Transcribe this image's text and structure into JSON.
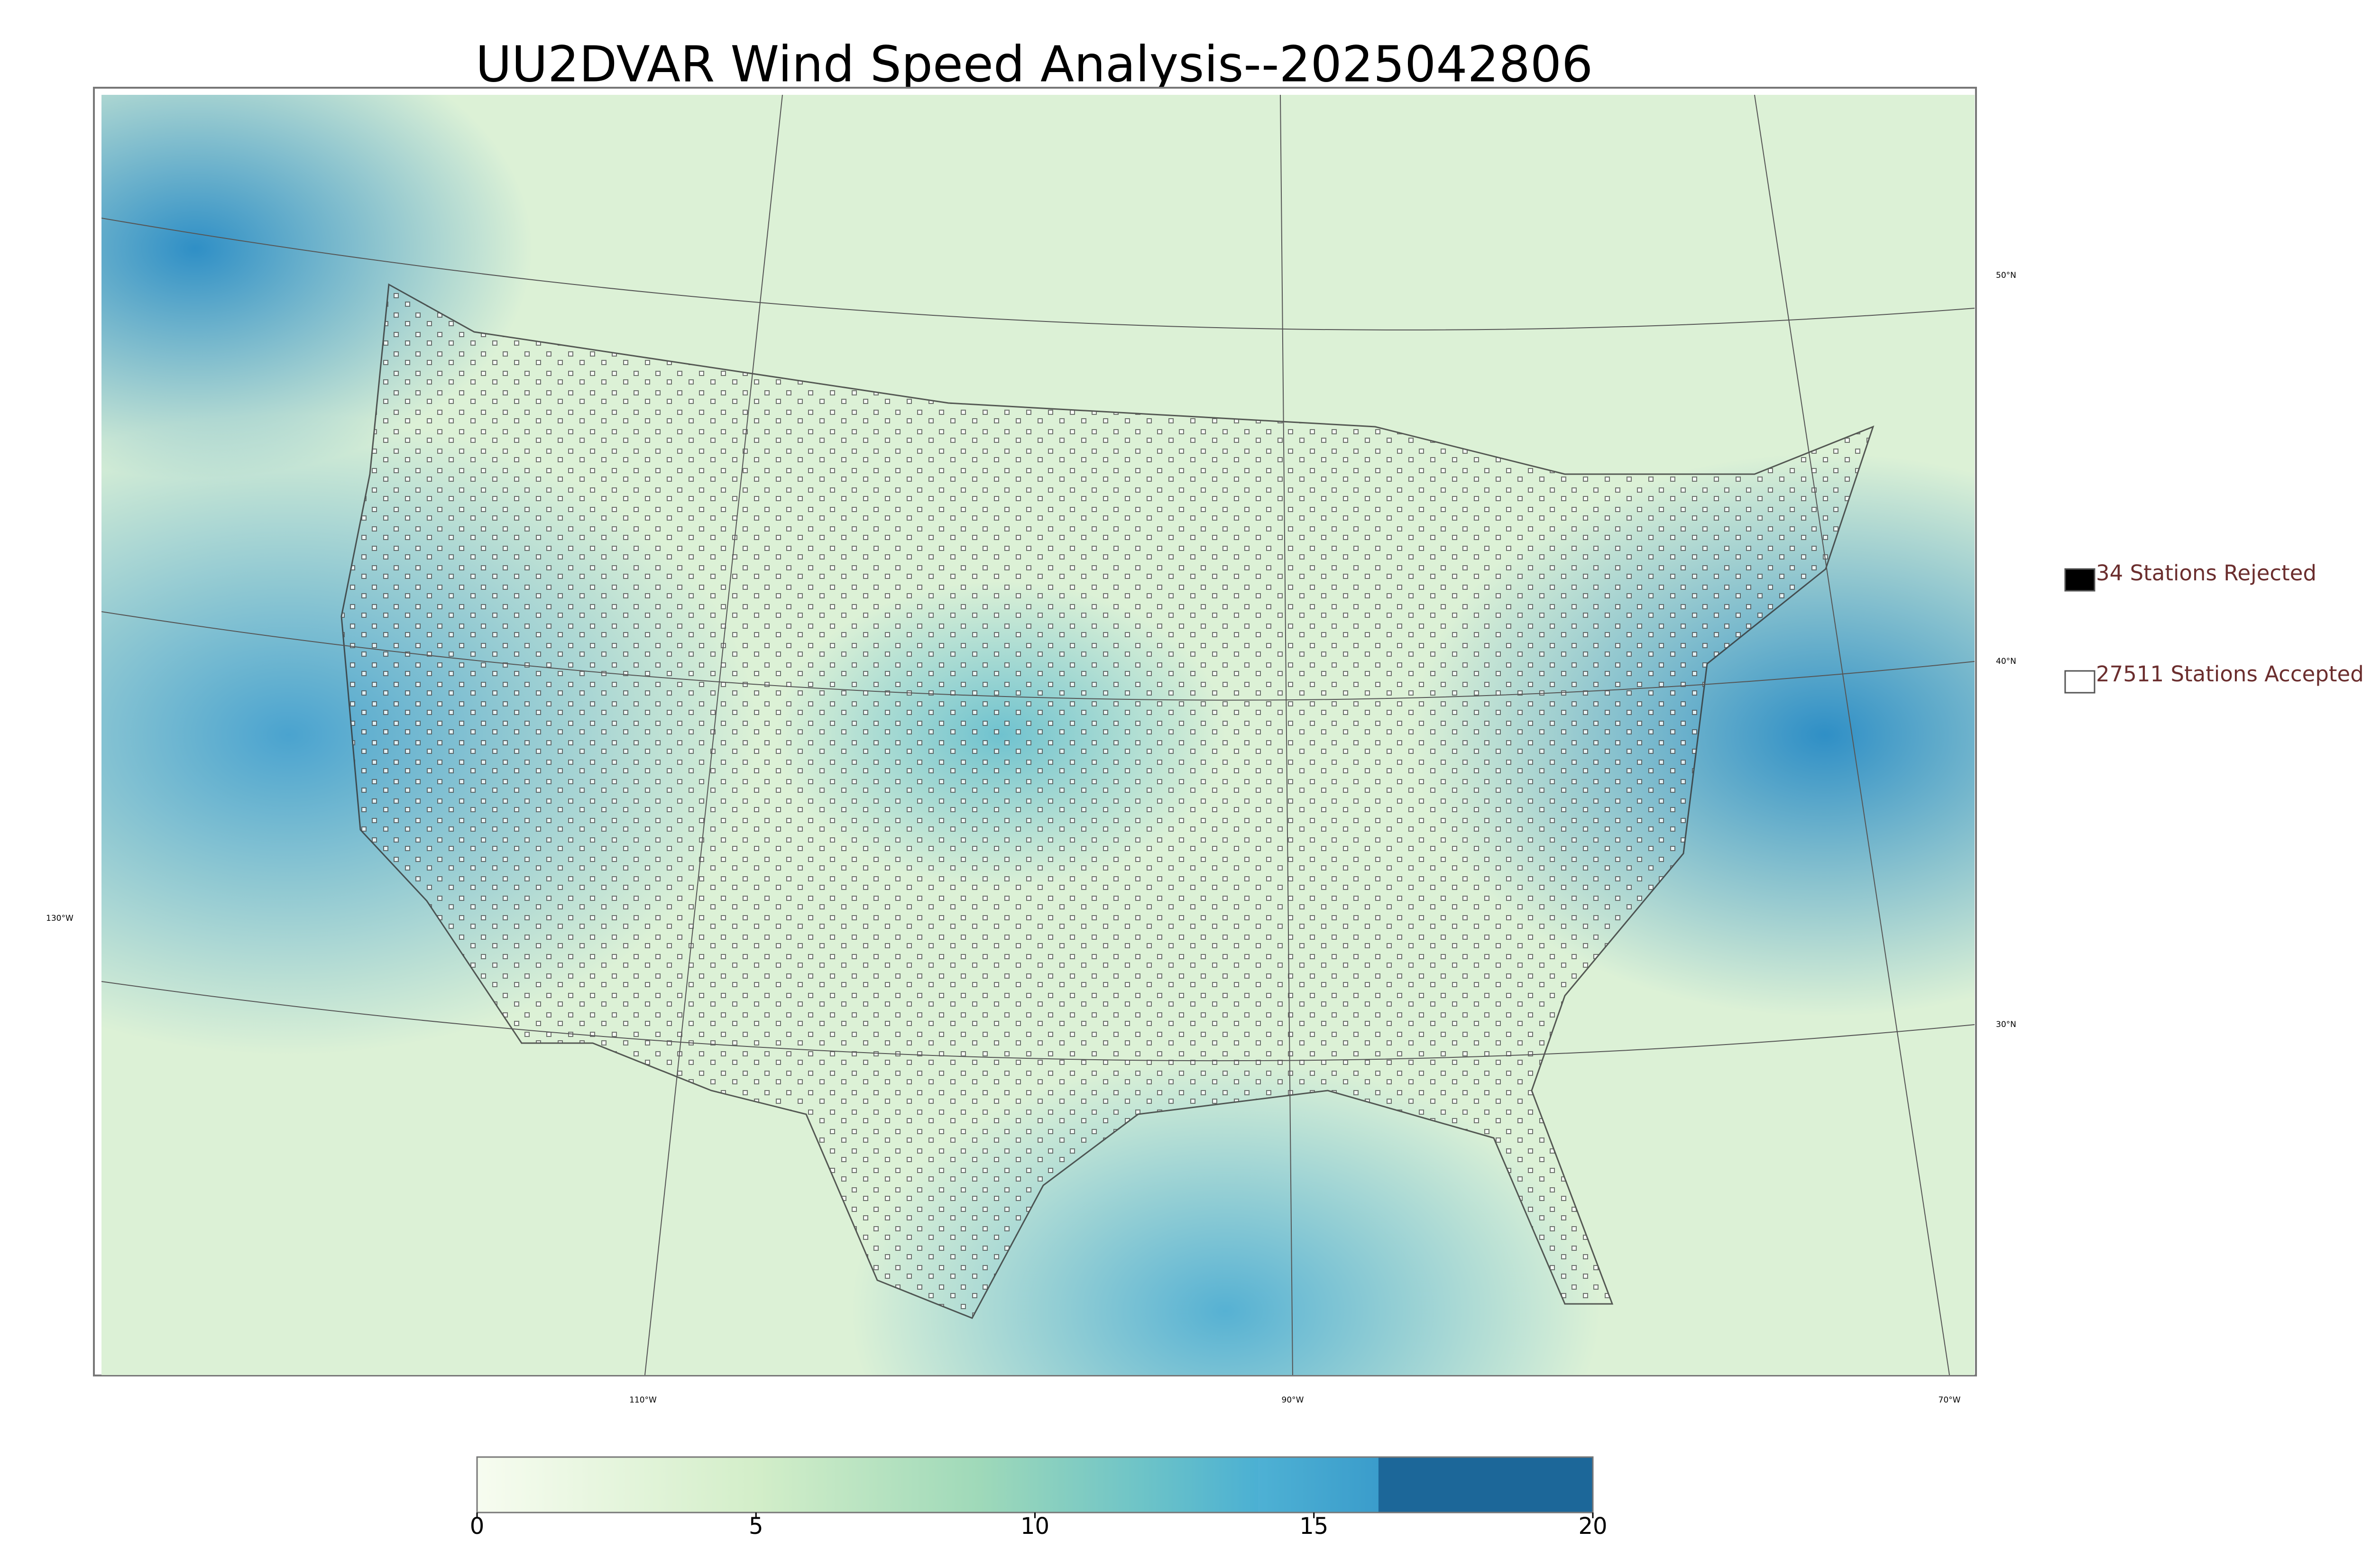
{
  "title": "UU2DVAR Wind Speed Analysis--2025042806",
  "legend": [
    "34 Stations Rejected",
    "27511 Stations Accepted"
  ],
  "lat_labels": [
    "50°N",
    "40°N",
    "30°N"
  ],
  "lon_labels": [
    "130°W",
    "110°W",
    "90°W",
    "70°W"
  ],
  "colorbar": {
    "lim": [
      0,
      20
    ],
    "ticks": [
      0,
      5,
      10,
      15,
      20
    ]
  }
}
